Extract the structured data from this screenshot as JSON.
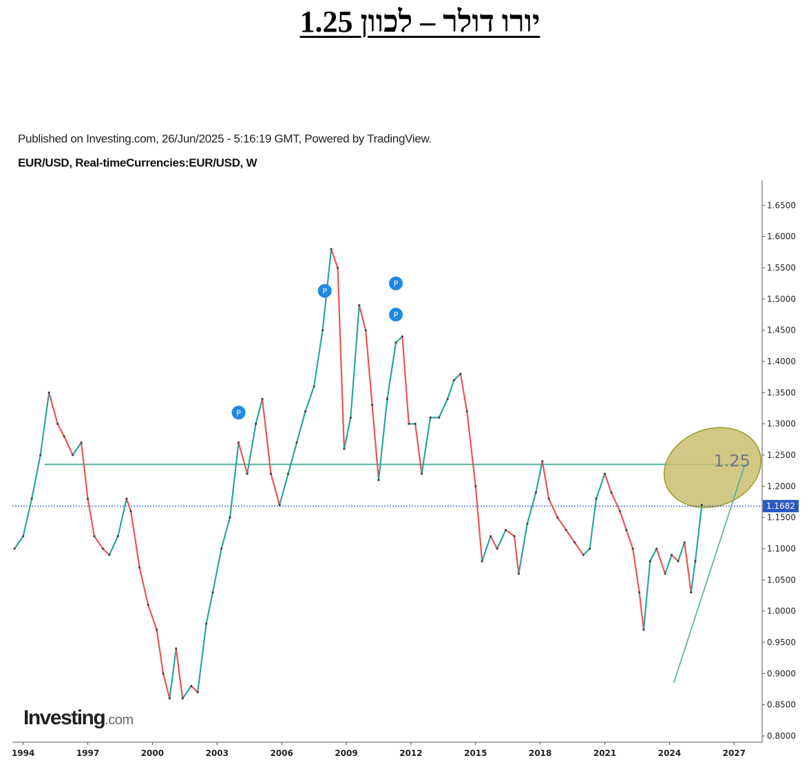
{
  "page": {
    "title": "יורו דולר – לכוון 1.25",
    "published": "Published on Investing.com, 26/Jun/2025 - 5:16:19 GMT, Powered by TradingView.",
    "symbol": "EUR/USD, Real-timeCurrencies:EUR/USD, W",
    "logo_brand": "Investing",
    "logo_tld": ".com"
  },
  "colors": {
    "up": "#26a69a",
    "down": "#ef5350",
    "line": "#444444",
    "support_line": "#4fae9c",
    "price_line": "#2b59c3",
    "ellipse_fill": "#c8c070",
    "ellipse_stroke": "#9a9a2a",
    "marker": "#1e88e5"
  },
  "chart_data": {
    "type": "line",
    "title": "",
    "xlabel": "",
    "ylabel": "",
    "xlim": [
      1993.5,
      2028.3
    ],
    "ylim": [
      0.79,
      1.69
    ],
    "x_ticks": [
      "1994",
      "1997",
      "2000",
      "2003",
      "2006",
      "2009",
      "2012",
      "2015",
      "2018",
      "2021",
      "2024",
      "2027"
    ],
    "y_ticks": [
      "1.6500",
      "1.6000",
      "1.5500",
      "1.5000",
      "1.4500",
      "1.4000",
      "1.3500",
      "1.3000",
      "1.2500",
      "1.2000",
      "1.1500",
      "1.1000",
      "1.0500",
      "1.0000",
      "0.9500",
      "0.9000",
      "0.8500",
      "0.8000"
    ],
    "current_price": 1.1682,
    "current_price_label": "1.1682",
    "series": [
      {
        "x": [
          1993.6,
          1994.0,
          1994.4,
          1994.8,
          1995.2,
          1995.6,
          1995.9,
          1996.3,
          1996.7,
          1997.0,
          1997.3,
          1997.7,
          1998.0,
          1998.4,
          1998.8,
          1999.0,
          1999.4,
          1999.8,
          2000.2,
          2000.5,
          2000.8,
          2001.1,
          2001.4,
          2001.8,
          2002.1,
          2002.5,
          2002.8,
          2003.2,
          2003.6,
          2004.0,
          2004.4,
          2004.8,
          2005.1,
          2005.5,
          2005.9,
          2006.3,
          2006.7,
          2007.1,
          2007.5,
          2007.9,
          2008.3,
          2008.6,
          2008.9,
          2009.2,
          2009.6,
          2009.9,
          2010.2,
          2010.5,
          2010.9,
          2011.3,
          2011.6,
          2011.9,
          2012.2,
          2012.5,
          2012.9,
          2013.3,
          2013.7,
          2014.0,
          2014.3,
          2014.6,
          2015.0,
          2015.3,
          2015.7,
          2016.0,
          2016.4,
          2016.8,
          2017.0,
          2017.4,
          2017.8,
          2018.1,
          2018.4,
          2018.8,
          2019.2,
          2019.6,
          2020.0,
          2020.3,
          2020.6,
          2021.0,
          2021.3,
          2021.7,
          2022.0,
          2022.3,
          2022.6,
          2022.8,
          2023.1,
          2023.4,
          2023.8,
          2024.1,
          2024.4,
          2024.7,
          2025.0,
          2025.2,
          2025.5
        ],
        "y": [
          1.1,
          1.12,
          1.18,
          1.25,
          1.35,
          1.3,
          1.28,
          1.25,
          1.27,
          1.18,
          1.12,
          1.1,
          1.09,
          1.12,
          1.18,
          1.16,
          1.07,
          1.01,
          0.97,
          0.9,
          0.86,
          0.94,
          0.86,
          0.88,
          0.87,
          0.98,
          1.03,
          1.1,
          1.15,
          1.27,
          1.22,
          1.3,
          1.34,
          1.22,
          1.17,
          1.22,
          1.27,
          1.32,
          1.36,
          1.45,
          1.58,
          1.55,
          1.26,
          1.31,
          1.49,
          1.45,
          1.33,
          1.21,
          1.34,
          1.43,
          1.44,
          1.3,
          1.3,
          1.22,
          1.31,
          1.31,
          1.34,
          1.37,
          1.38,
          1.32,
          1.2,
          1.08,
          1.12,
          1.1,
          1.13,
          1.12,
          1.06,
          1.14,
          1.19,
          1.24,
          1.18,
          1.15,
          1.13,
          1.11,
          1.09,
          1.1,
          1.18,
          1.22,
          1.19,
          1.16,
          1.13,
          1.1,
          1.03,
          0.97,
          1.08,
          1.1,
          1.06,
          1.09,
          1.08,
          1.11,
          1.03,
          1.08,
          1.17
        ]
      }
    ],
    "markers": [
      {
        "x": 2004.0,
        "y": 1.318,
        "label": "P"
      },
      {
        "x": 2008.0,
        "y": 1.513,
        "label": "P"
      },
      {
        "x": 2011.3,
        "y": 1.525,
        "label": "P"
      },
      {
        "x": 2011.3,
        "y": 1.475,
        "label": "P"
      }
    ],
    "support_line": {
      "y": 1.235,
      "x_start": 1995.0,
      "x_end": 2027.5
    },
    "trend_line": {
      "x1": 2024.2,
      "y1": 0.885,
      "x2": 2027.5,
      "y2": 1.235
    },
    "target_zone": {
      "x": 2026.0,
      "y": 1.23
    },
    "annotation": "1.25"
  }
}
